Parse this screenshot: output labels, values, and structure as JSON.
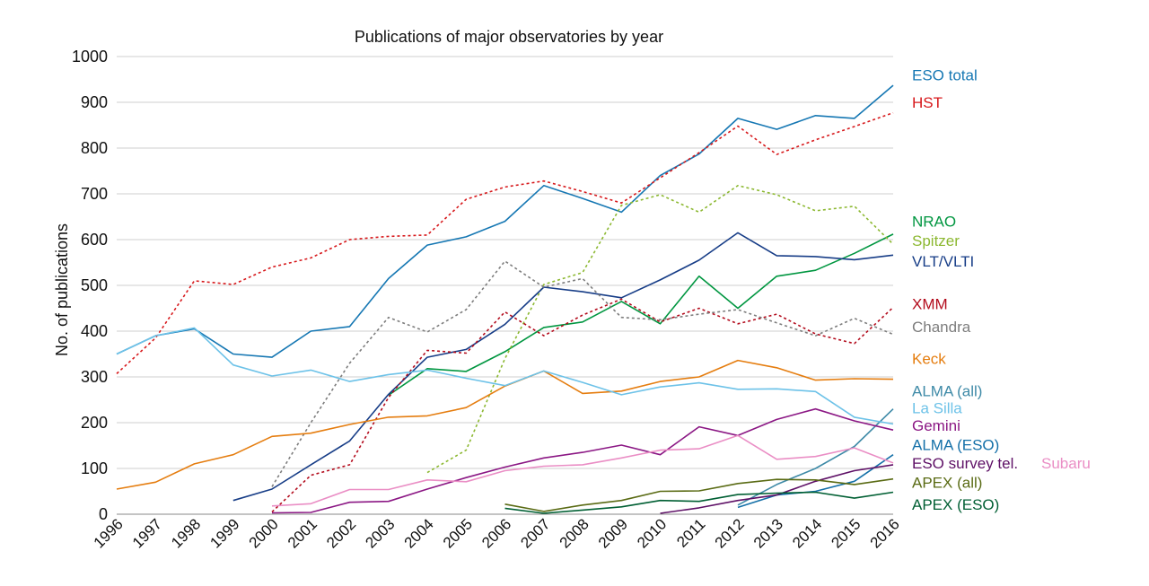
{
  "chart_data": {
    "type": "line",
    "title": "Publications of major observatories by year",
    "ylabel": "No. of publications",
    "xlabel": "",
    "ylim": [
      0,
      1000
    ],
    "y_ticks": [
      0,
      100,
      200,
      300,
      400,
      500,
      600,
      700,
      800,
      900,
      1000
    ],
    "grid": true,
    "legend_placement": "right (end-of-line labels)",
    "x": [
      "1996",
      "1997",
      "1998",
      "1999",
      "2000",
      "2001",
      "2002",
      "2003",
      "2004",
      "2005",
      "2006",
      "2007",
      "2008",
      "2009",
      "2010",
      "2011",
      "2012",
      "2013",
      "2014",
      "2015",
      "2016"
    ],
    "series": [
      {
        "name": "ESO total",
        "color": "#1577b3",
        "dashed": false,
        "values": [
          350,
          390,
          405,
          350,
          343,
          400,
          410,
          515,
          588,
          606,
          640,
          718,
          690,
          660,
          740,
          787,
          865,
          841,
          871,
          865,
          937
        ]
      },
      {
        "name": "HST",
        "color": "#d7191c",
        "dashed": true,
        "values": [
          307,
          385,
          510,
          502,
          540,
          560,
          600,
          607,
          610,
          688,
          715,
          728,
          705,
          680,
          735,
          790,
          848,
          786,
          818,
          847,
          877
        ]
      },
      {
        "name": "NRAO",
        "color": "#009640",
        "dashed": false,
        "values": [
          null,
          null,
          null,
          null,
          null,
          null,
          null,
          260,
          318,
          312,
          355,
          408,
          420,
          465,
          416,
          520,
          450,
          520,
          533,
          570,
          612
        ]
      },
      {
        "name": "Spitzer",
        "color": "#8cb831",
        "dashed": true,
        "values": [
          null,
          null,
          null,
          null,
          null,
          null,
          null,
          null,
          91,
          140,
          340,
          502,
          528,
          675,
          698,
          660,
          718,
          698,
          663,
          673,
          590
        ]
      },
      {
        "name": "VLT/VLTI",
        "color": "#173d87",
        "dashed": false,
        "values": [
          null,
          null,
          null,
          30,
          55,
          108,
          160,
          262,
          343,
          360,
          415,
          496,
          486,
          473,
          512,
          555,
          615,
          565,
          563,
          556,
          566
        ]
      },
      {
        "name": "XMM",
        "color": "#b30b1c",
        "dashed": true,
        "values": [
          null,
          null,
          null,
          null,
          5,
          85,
          108,
          255,
          358,
          352,
          442,
          390,
          435,
          470,
          420,
          450,
          416,
          437,
          394,
          373,
          452
        ]
      },
      {
        "name": "Chandra",
        "color": "#7d7d7d",
        "dashed": true,
        "values": [
          null,
          null,
          null,
          null,
          60,
          200,
          330,
          430,
          398,
          447,
          553,
          496,
          515,
          430,
          425,
          437,
          447,
          418,
          390,
          428,
          393
        ]
      },
      {
        "name": "Keck",
        "color": "#e57d0f",
        "dashed": false,
        "values": [
          55,
          70,
          110,
          130,
          170,
          177,
          196,
          212,
          215,
          233,
          280,
          313,
          264,
          269,
          290,
          300,
          336,
          320,
          293,
          296,
          295
        ]
      },
      {
        "name": "ALMA (all)",
        "color": "#3e8aa7",
        "dashed": false,
        "values": [
          null,
          null,
          null,
          null,
          null,
          null,
          null,
          null,
          null,
          null,
          null,
          null,
          null,
          null,
          null,
          null,
          20,
          65,
          100,
          148,
          230
        ]
      },
      {
        "name": "La Silla",
        "color": "#6dc2e8",
        "dashed": false,
        "values": [
          350,
          390,
          407,
          326,
          302,
          315,
          290,
          305,
          315,
          297,
          281,
          313,
          288,
          261,
          278,
          287,
          273,
          274,
          268,
          212,
          197
        ]
      },
      {
        "name": "Gemini",
        "color": "#8b1784",
        "dashed": false,
        "values": [
          null,
          null,
          null,
          null,
          3,
          4,
          26,
          28,
          55,
          80,
          103,
          123,
          135,
          151,
          130,
          191,
          172,
          207,
          230,
          204,
          184
        ]
      },
      {
        "name": "ALMA (ESO)",
        "color": "#1470a8",
        "dashed": false,
        "values": [
          null,
          null,
          null,
          null,
          null,
          null,
          null,
          null,
          null,
          null,
          null,
          null,
          null,
          null,
          null,
          null,
          15,
          42,
          50,
          72,
          130
        ]
      },
      {
        "name": "ESO survey tel.",
        "color": "#5e1066",
        "dashed": false,
        "values": [
          null,
          null,
          null,
          null,
          null,
          null,
          null,
          null,
          null,
          null,
          null,
          null,
          null,
          null,
          2,
          14,
          30,
          42,
          72,
          95,
          108
        ]
      },
      {
        "name": "Subaru",
        "color": "#ea8ec5",
        "dashed": false,
        "values": [
          null,
          null,
          null,
          null,
          18,
          23,
          54,
          54,
          75,
          71,
          95,
          105,
          108,
          123,
          140,
          143,
          172,
          120,
          126,
          145,
          112
        ]
      },
      {
        "name": "APEX (all)",
        "color": "#5a6b14",
        "dashed": false,
        "values": [
          null,
          null,
          null,
          null,
          null,
          null,
          null,
          null,
          null,
          null,
          22,
          6,
          20,
          30,
          50,
          51,
          67,
          76,
          75,
          65,
          77
        ]
      },
      {
        "name": "APEX (ESO)",
        "color": "#005f33",
        "dashed": false,
        "values": [
          null,
          null,
          null,
          null,
          null,
          null,
          null,
          null,
          null,
          null,
          13,
          2,
          9,
          16,
          30,
          28,
          43,
          46,
          48,
          35,
          48
        ]
      }
    ]
  },
  "legend_labels": [
    {
      "name": "ESO total",
      "color": "#1577b3",
      "value": 960
    },
    {
      "name": "HST",
      "color": "#d7191c",
      "value": 900
    },
    {
      "name": "NRAO",
      "color": "#009640",
      "value": 640
    },
    {
      "name": "Spitzer",
      "color": "#8cb831",
      "value": 598
    },
    {
      "name": "VLT/VLTI",
      "color": "#173d87",
      "value": 553
    },
    {
      "name": "XMM",
      "color": "#b30b1c",
      "value": 460
    },
    {
      "name": "Chandra",
      "color": "#7d7d7d",
      "value": 410
    },
    {
      "name": "Keck",
      "color": "#e57d0f",
      "value": 340
    },
    {
      "name": "ALMA (all)",
      "color": "#3e8aa7",
      "value": 270
    },
    {
      "name": "La Silla",
      "color": "#6dc2e8",
      "value": 232
    },
    {
      "name": "Gemini",
      "color": "#8b1784",
      "value": 194
    },
    {
      "name": "ALMA (ESO)",
      "color": "#1470a8",
      "value": 152
    },
    {
      "name": "ESO survey tel.",
      "color": "#5e1066",
      "value": 112
    },
    {
      "name": "Subaru",
      "color": "#ea8ec5",
      "value": 112
    },
    {
      "name": "APEX (all)",
      "color": "#5a6b14",
      "value": 70
    },
    {
      "name": "APEX (ESO)",
      "color": "#005f33",
      "value": 22
    }
  ]
}
